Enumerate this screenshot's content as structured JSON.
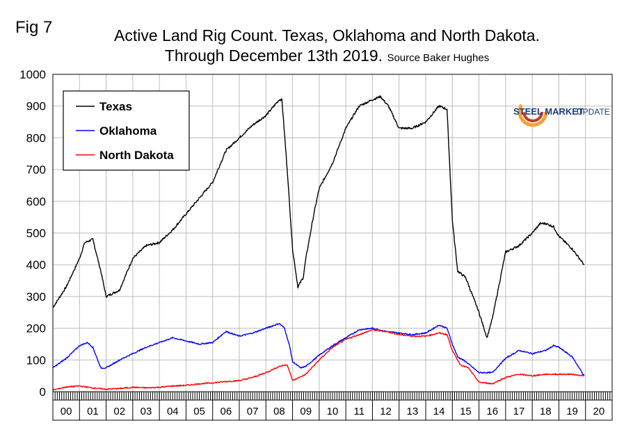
{
  "figure_label": "Fig 7",
  "logo": {
    "name": "steel-market-update-logo",
    "text_1": "STEEL MARKET",
    "text_2": "UPDATE"
  },
  "chart_data": {
    "type": "line",
    "title": "Active Land Rig Count. Texas, Oklahoma and North Dakota.",
    "subtitle": "Through December 13th 2019.",
    "source": "Source Baker Hughes",
    "xlabel": "",
    "ylabel": "",
    "ylim": [
      0,
      1000
    ],
    "yticks": [
      0,
      100,
      200,
      300,
      400,
      500,
      600,
      700,
      800,
      900,
      1000
    ],
    "xlim": [
      2000.0,
      2021.0
    ],
    "xtick_labels": [
      "00",
      "01",
      "02",
      "03",
      "04",
      "05",
      "06",
      "07",
      "08",
      "09",
      "10",
      "11",
      "12",
      "13",
      "14",
      "15",
      "16",
      "17",
      "18",
      "19",
      "20"
    ],
    "grid": true,
    "legend_position": "top-left",
    "series": [
      {
        "name": "Texas",
        "color": "#000000",
        "x": [
          2000.0,
          2000.5,
          2001.0,
          2001.2,
          2001.5,
          2001.8,
          2002.0,
          2002.5,
          2003.0,
          2003.5,
          2004.0,
          2004.5,
          2005.0,
          2005.5,
          2006.0,
          2006.5,
          2007.0,
          2007.5,
          2008.0,
          2008.5,
          2008.6,
          2008.8,
          2009.0,
          2009.2,
          2009.4,
          2009.5,
          2009.8,
          2010.0,
          2010.5,
          2011.0,
          2011.5,
          2012.0,
          2012.3,
          2012.6,
          2013.0,
          2013.5,
          2014.0,
          2014.5,
          2014.8,
          2015.0,
          2015.2,
          2015.5,
          2016.0,
          2016.3,
          2016.5,
          2017.0,
          2017.5,
          2018.0,
          2018.3,
          2018.5,
          2018.8,
          2019.0,
          2019.5,
          2019.95
        ],
        "y": [
          265,
          330,
          420,
          470,
          480,
          380,
          300,
          320,
          420,
          460,
          470,
          510,
          560,
          610,
          660,
          760,
          800,
          840,
          870,
          920,
          920,
          700,
          450,
          330,
          360,
          420,
          560,
          640,
          720,
          830,
          900,
          920,
          930,
          900,
          830,
          830,
          850,
          900,
          890,
          540,
          380,
          360,
          250,
          170,
          230,
          440,
          460,
          500,
          530,
          530,
          520,
          490,
          450,
          400
        ]
      },
      {
        "name": "Oklahoma",
        "color": "#0000ff",
        "x": [
          2000.0,
          2000.5,
          2001.0,
          2001.3,
          2001.5,
          2001.8,
          2002.0,
          2002.5,
          2003.0,
          2003.5,
          2004.0,
          2004.5,
          2005.0,
          2005.5,
          2006.0,
          2006.5,
          2007.0,
          2007.5,
          2008.0,
          2008.5,
          2008.7,
          2008.9,
          2009.0,
          2009.3,
          2009.5,
          2010.0,
          2010.5,
          2011.0,
          2011.5,
          2012.0,
          2012.5,
          2013.0,
          2013.5,
          2014.0,
          2014.5,
          2014.8,
          2015.0,
          2015.2,
          2015.5,
          2016.0,
          2016.5,
          2017.0,
          2017.5,
          2018.0,
          2018.5,
          2018.8,
          2019.0,
          2019.5,
          2019.95
        ],
        "y": [
          75,
          105,
          145,
          155,
          140,
          75,
          75,
          100,
          120,
          140,
          155,
          170,
          160,
          150,
          155,
          190,
          175,
          185,
          200,
          215,
          200,
          140,
          95,
          75,
          80,
          115,
          145,
          170,
          195,
          200,
          190,
          185,
          180,
          185,
          210,
          200,
          150,
          110,
          95,
          60,
          60,
          105,
          130,
          120,
          130,
          145,
          140,
          110,
          50
        ]
      },
      {
        "name": "North Dakota",
        "color": "#ff0000",
        "x": [
          2000.0,
          2000.5,
          2001.0,
          2001.5,
          2002.0,
          2002.5,
          2003.0,
          2003.5,
          2004.0,
          2004.5,
          2005.0,
          2005.5,
          2006.0,
          2006.5,
          2007.0,
          2007.5,
          2008.0,
          2008.5,
          2008.8,
          2009.0,
          2009.5,
          2010.0,
          2010.5,
          2011.0,
          2011.5,
          2012.0,
          2012.5,
          2013.0,
          2013.5,
          2014.0,
          2014.5,
          2014.8,
          2015.0,
          2015.3,
          2015.6,
          2016.0,
          2016.5,
          2017.0,
          2017.5,
          2018.0,
          2018.5,
          2019.0,
          2019.5,
          2019.95
        ],
        "y": [
          5,
          15,
          18,
          12,
          8,
          10,
          14,
          12,
          14,
          18,
          20,
          25,
          28,
          32,
          35,
          45,
          60,
          80,
          85,
          35,
          55,
          100,
          140,
          165,
          180,
          195,
          190,
          180,
          175,
          175,
          185,
          180,
          130,
          85,
          75,
          30,
          25,
          45,
          55,
          50,
          55,
          55,
          55,
          50
        ]
      }
    ]
  }
}
